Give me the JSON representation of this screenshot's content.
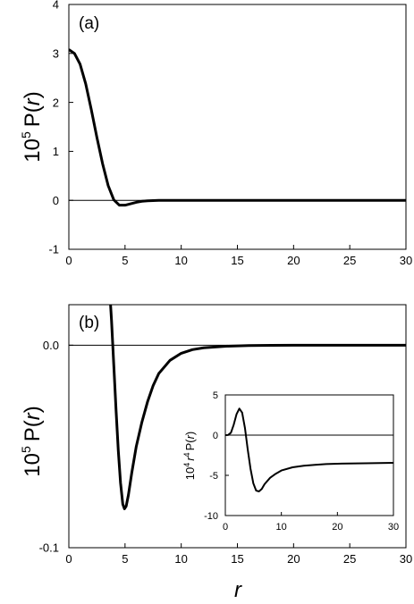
{
  "figure": {
    "xlabel_shared": "r"
  },
  "chart_data": [
    {
      "id": "a",
      "type": "line",
      "panel_label": "(a)",
      "ylabel_prefix": "10",
      "ylabel_exp": "5",
      "ylabel_main": "P(",
      "ylabel_var": "r",
      "ylabel_close": ")",
      "xlim": [
        0,
        30
      ],
      "ylim": [
        -1,
        4
      ],
      "xticks": [
        0,
        5,
        10,
        15,
        20,
        25,
        30
      ],
      "yticks": [
        -1,
        0,
        1,
        2,
        3,
        4
      ],
      "zero_line": true,
      "series": [
        {
          "x": [
            0,
            0.5,
            1,
            1.5,
            2,
            2.5,
            3,
            3.5,
            4,
            4.5,
            5,
            5.5,
            6,
            6.5,
            7,
            8,
            10,
            15,
            20,
            25,
            30
          ],
          "y": [
            3.08,
            3.0,
            2.78,
            2.38,
            1.85,
            1.28,
            0.75,
            0.3,
            0.01,
            -0.1,
            -0.1,
            -0.07,
            -0.04,
            -0.02,
            -0.01,
            0.0,
            0.0,
            0.0,
            0.0,
            0.0,
            0.0
          ]
        }
      ]
    },
    {
      "id": "b",
      "type": "line",
      "panel_label": "(b)",
      "ylabel_prefix": "10",
      "ylabel_exp": "5",
      "ylabel_main": "P(",
      "ylabel_var": "r",
      "ylabel_close": ")",
      "xlabel": "r",
      "xlim": [
        0,
        30
      ],
      "ylim": [
        -0.1,
        0.02
      ],
      "xticks": [
        0,
        5,
        10,
        15,
        20,
        25,
        30
      ],
      "yticks": [
        -0.1,
        0.0
      ],
      "ytick_labels": [
        "-0.1",
        "0.0"
      ],
      "zero_line": true,
      "series": [
        {
          "x": [
            3.6,
            3.8,
            4.0,
            4.2,
            4.4,
            4.6,
            4.8,
            4.95,
            5.1,
            5.3,
            5.6,
            6.0,
            6.5,
            7,
            7.5,
            8,
            9,
            10,
            11,
            12,
            14,
            16,
            18,
            20,
            25,
            30
          ],
          "y": [
            0.03,
            0.012,
            -0.01,
            -0.032,
            -0.052,
            -0.068,
            -0.0785,
            -0.0808,
            -0.0795,
            -0.074,
            -0.063,
            -0.05,
            -0.038,
            -0.028,
            -0.02,
            -0.014,
            -0.0075,
            -0.004,
            -0.0022,
            -0.0013,
            -0.0005,
            -0.0002,
            -0.0001,
            0.0,
            0.0,
            0.0
          ]
        }
      ]
    },
    {
      "id": "inset",
      "type": "line",
      "ylabel_prefix": "10",
      "ylabel_exp": "4",
      "ylabel_r": "r",
      "ylabel_exp2": "4",
      "ylabel_main": "P(",
      "ylabel_var": "r",
      "ylabel_close": ")",
      "xlim": [
        0,
        30
      ],
      "ylim": [
        -10,
        5
      ],
      "xticks": [
        0,
        10,
        20,
        30
      ],
      "yticks": [
        -10,
        -5,
        0,
        5
      ],
      "zero_line": true,
      "series": [
        {
          "x": [
            0,
            0.5,
            1,
            1.5,
            2,
            2.5,
            3,
            3.5,
            4,
            4.5,
            5,
            5.5,
            6,
            6.5,
            7,
            8,
            9,
            10,
            12,
            14,
            16,
            18,
            20,
            25,
            30
          ],
          "y": [
            0.0,
            0.02,
            0.3,
            1.3,
            2.6,
            3.3,
            2.8,
            0.9,
            -1.8,
            -4.2,
            -6.0,
            -6.9,
            -7.0,
            -6.7,
            -6.1,
            -5.3,
            -4.8,
            -4.4,
            -4.0,
            -3.8,
            -3.7,
            -3.6,
            -3.55,
            -3.5,
            -3.45
          ]
        }
      ]
    }
  ]
}
